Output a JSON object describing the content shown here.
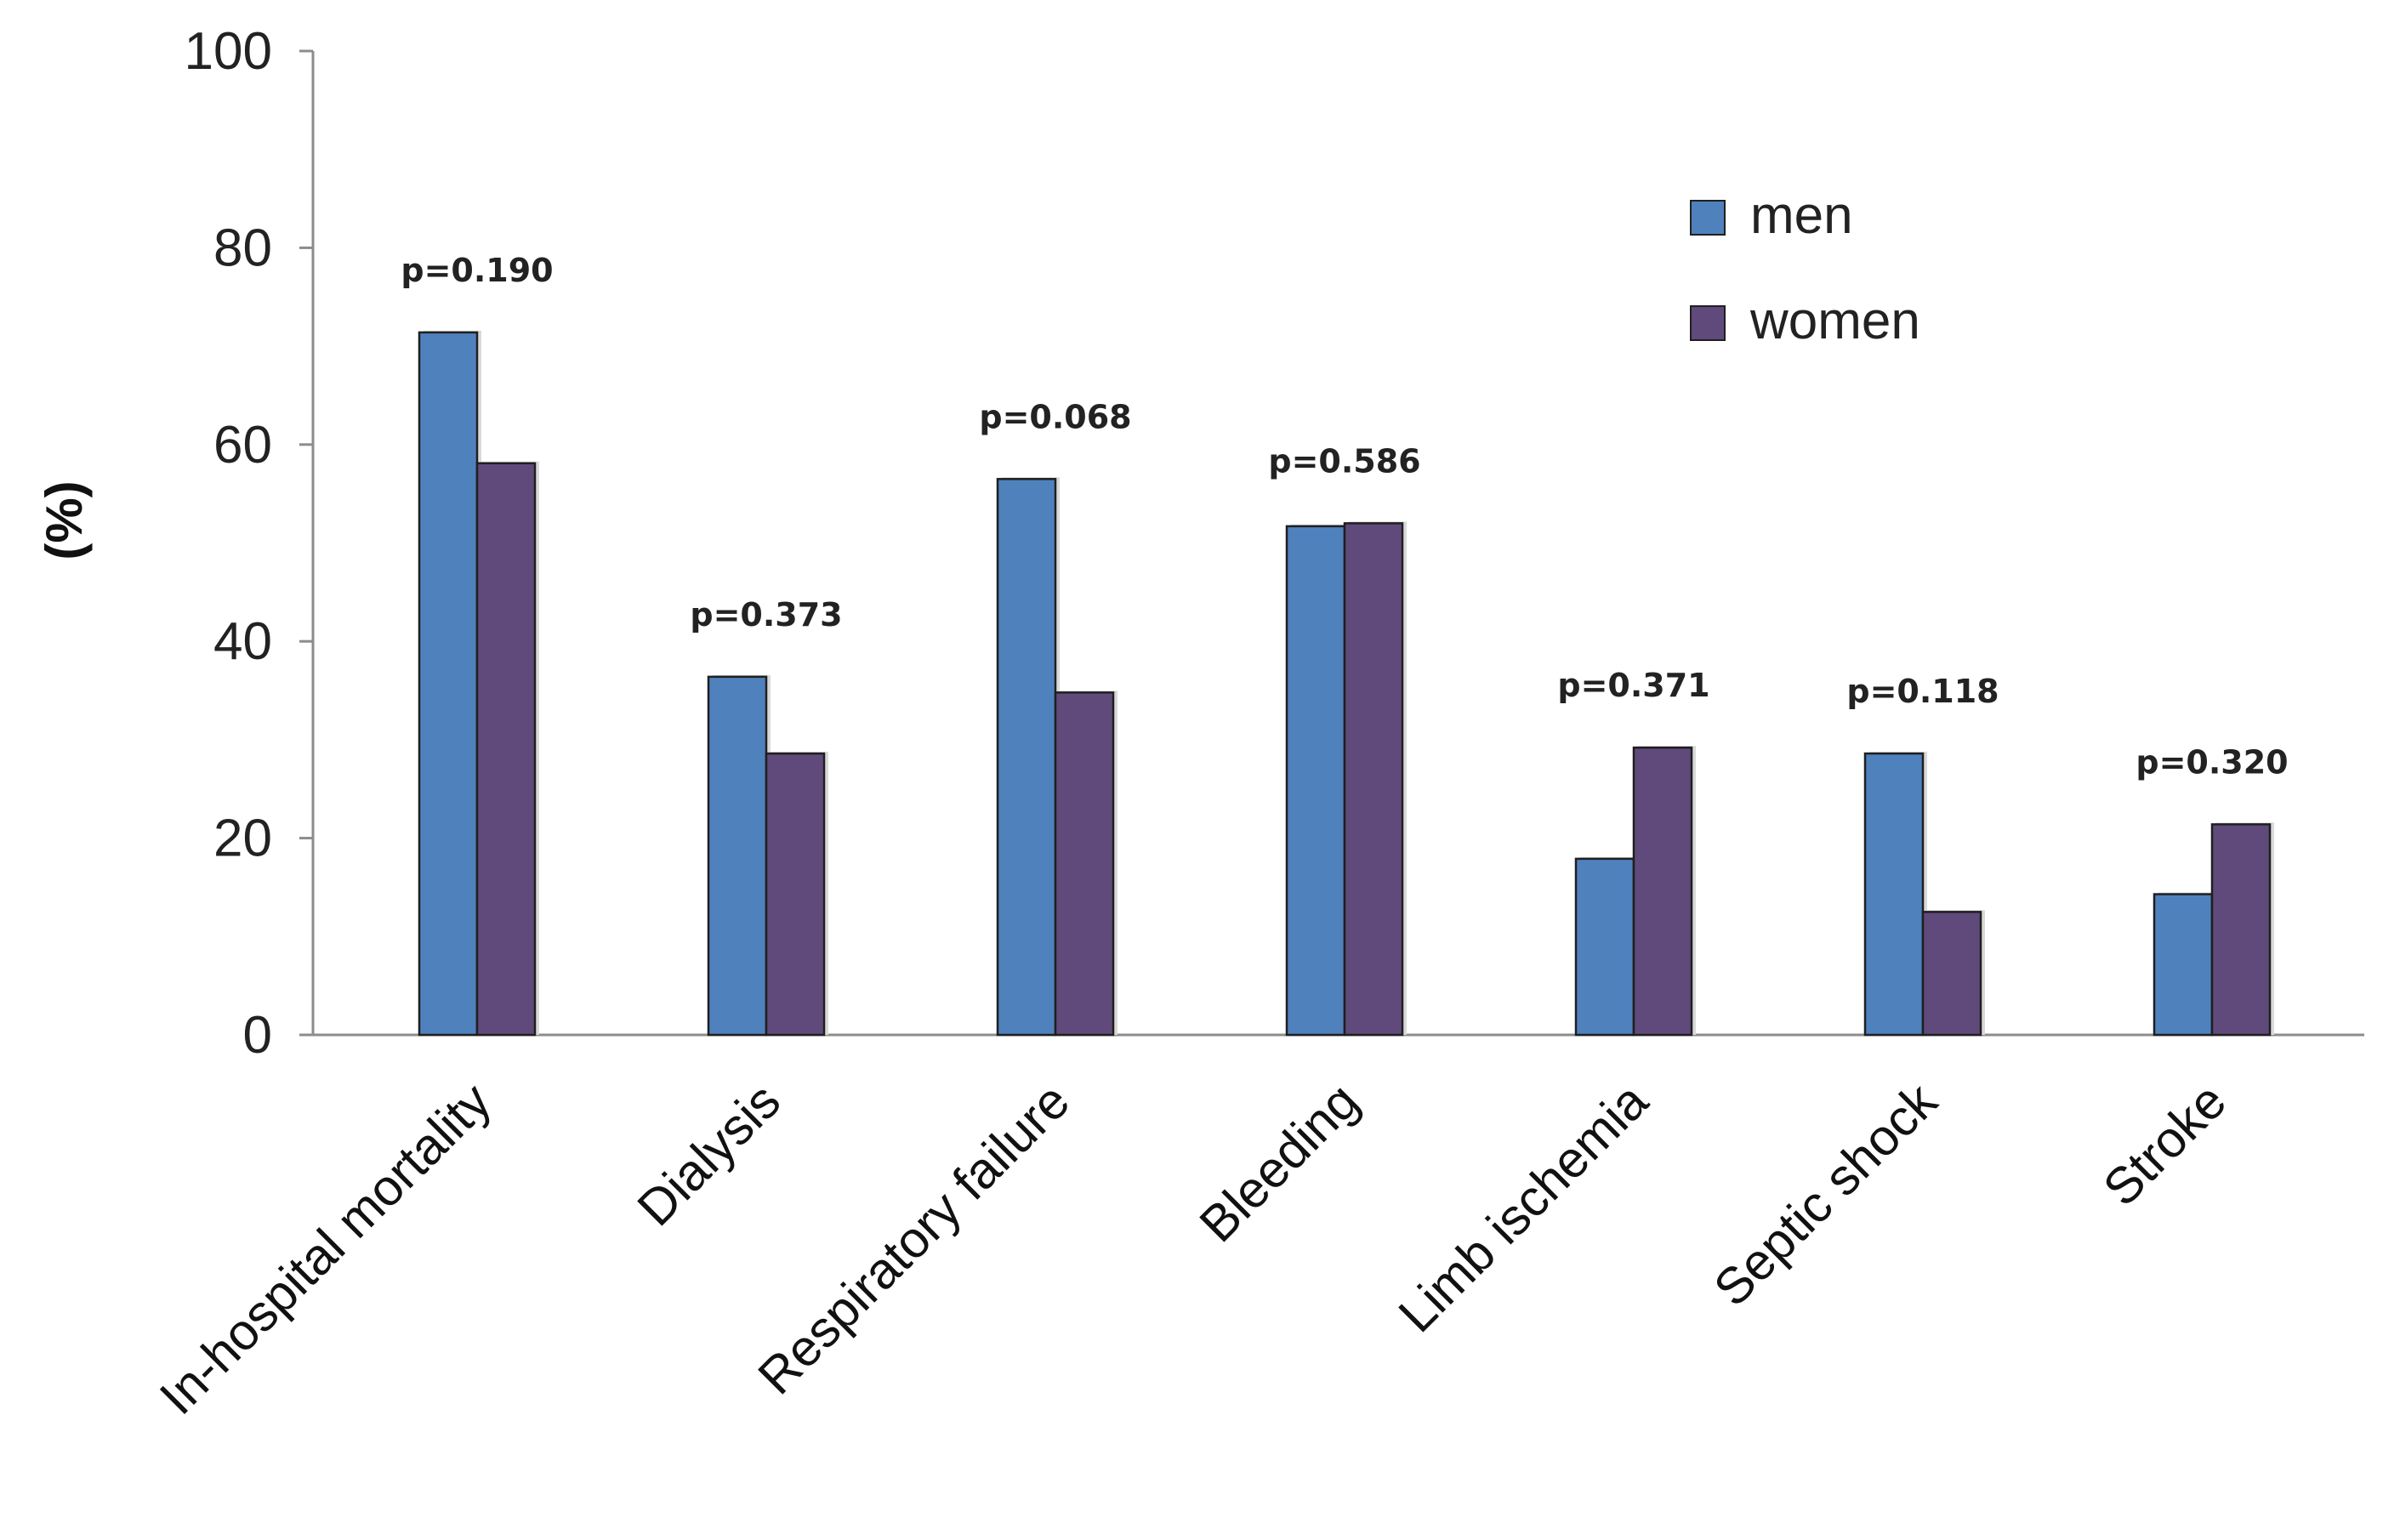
{
  "chart_data": {
    "type": "bar",
    "title": "",
    "xlabel": "",
    "ylabel": "(%)",
    "ylim": [
      0,
      100
    ],
    "yticks": [
      0,
      20,
      40,
      60,
      80,
      100
    ],
    "grid": false,
    "legend_position": "top-right",
    "categories": [
      "In-hospital mortality",
      "Dialysis",
      "Respiratory failure",
      "Bleeding",
      "Limb ischemia",
      "Septic shock",
      "Stroke"
    ],
    "series": [
      {
        "name": "men",
        "color": "#4f81bd",
        "values": [
          71.4,
          36.4,
          56.5,
          51.7,
          17.9,
          28.6,
          14.3
        ]
      },
      {
        "name": "women",
        "color": "#604a7b",
        "values": [
          58.1,
          28.6,
          34.8,
          52.0,
          29.2,
          12.5,
          21.4
        ]
      }
    ],
    "annotations": [
      "p=0.190",
      "p=0.373",
      "p=0.068",
      "p=0.586",
      "p=0.371",
      "p=0.118",
      "p=0.320"
    ]
  }
}
